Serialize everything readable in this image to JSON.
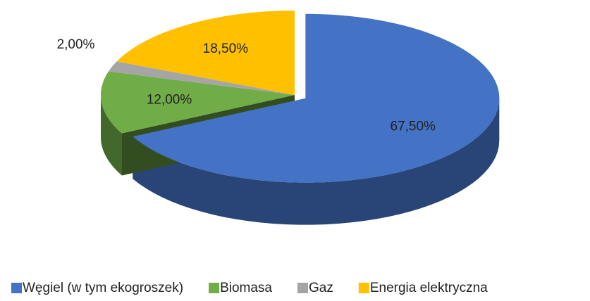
{
  "chart_data": {
    "type": "pie",
    "categories": [
      "Węgiel (w tym ekogroszek)",
      "Biomasa",
      "Gaz",
      "Energia elektryczna"
    ],
    "values": [
      67.5,
      12,
      2,
      18.5
    ],
    "value_labels": [
      "67,50%",
      "12,00%",
      "2,00%",
      "18,50%"
    ],
    "colors": [
      "#4472c4",
      "#70ad47",
      "#a5a5a5",
      "#ffc000"
    ],
    "legend": "bottom"
  }
}
